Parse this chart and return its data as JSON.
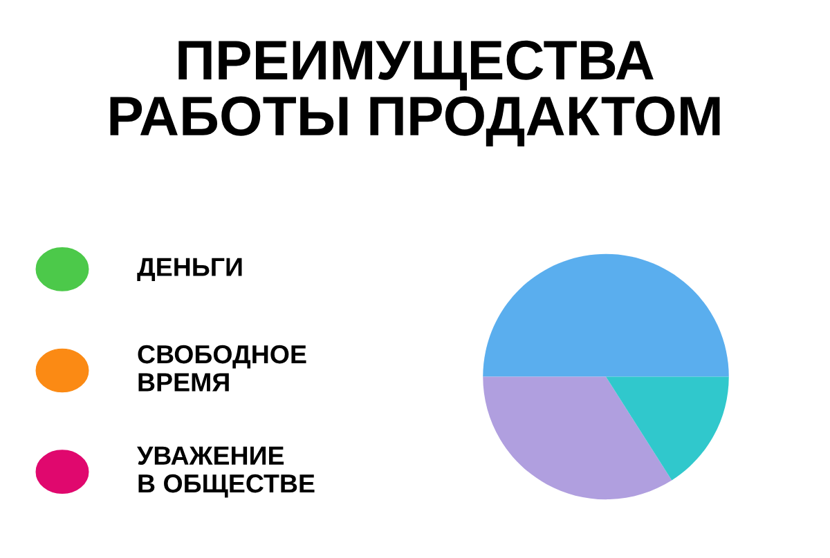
{
  "chart_data": [
    {
      "type": "pie",
      "title": "ПРЕИМУЩЕСТВА\nРАБОТЫ ПРОДАКТОМ",
      "categories": [
        null,
        null,
        null
      ],
      "values": [
        50,
        34,
        16
      ],
      "colors": [
        "#5aaeee",
        "#b09fdf",
        "#30c8cc"
      ]
    },
    {
      "type": "other",
      "annotations": [
        "ДЕНЬГИ",
        "СВОБОДНОЕ\nВРЕМЯ",
        "УВАЖЕНИЕ\nВ ОБЩЕСТВЕ"
      ],
      "colors": [
        "#4cc94a",
        "#fb8a14",
        "#e0086e"
      ]
    }
  ]
}
